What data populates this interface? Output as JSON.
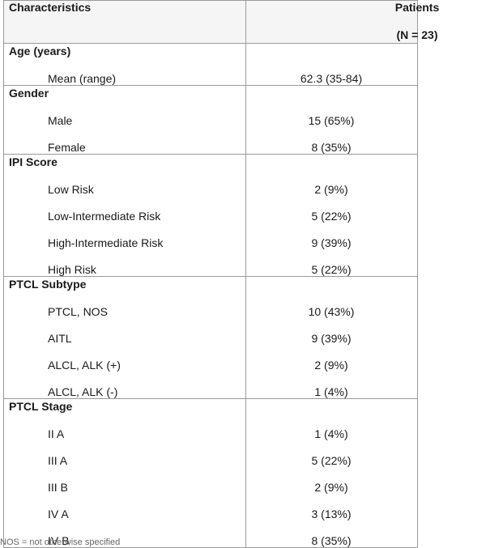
{
  "header": {
    "characteristics": "Characteristics",
    "patients_line1": "Patients",
    "patients_line2": "(N = 23)"
  },
  "sections": [
    {
      "title": "Age (years)",
      "rows": [
        {
          "label": "Mean (range)",
          "value": "62.3 (35-84)"
        }
      ]
    },
    {
      "title": "Gender",
      "rows": [
        {
          "label": "Male",
          "value": "15 (65%)"
        },
        {
          "label": "Female",
          "value": "8 (35%)"
        }
      ]
    },
    {
      "title": "IPI Score",
      "rows": [
        {
          "label": "Low Risk",
          "value": "2 (9%)"
        },
        {
          "label": "Low-Intermediate Risk",
          "value": "5 (22%)"
        },
        {
          "label": "High-Intermediate Risk",
          "value": "9 (39%)"
        },
        {
          "label": "High Risk",
          "value": "5 (22%)"
        }
      ]
    },
    {
      "title": "PTCL Subtype",
      "rows": [
        {
          "label": "PTCL, NOS",
          "value": "10 (43%)"
        },
        {
          "label": "AITL",
          "value": "9 (39%)"
        },
        {
          "label": "ALCL, ALK (+)",
          "value": "2 (9%)"
        },
        {
          "label": "ALCL, ALK (-)",
          "value": "1 (4%)"
        }
      ]
    },
    {
      "title": "PTCL Stage",
      "rows": [
        {
          "label": "II A",
          "value": "1 (4%)"
        },
        {
          "label": "III A",
          "value": "5 (22%)"
        },
        {
          "label": "III B",
          "value": "2 (9%)"
        },
        {
          "label": "IV A",
          "value": "3 (13%)"
        },
        {
          "label": "IV B",
          "value": "8 (35%)"
        }
      ]
    }
  ],
  "footnote": "NOS = not otherwise specified"
}
